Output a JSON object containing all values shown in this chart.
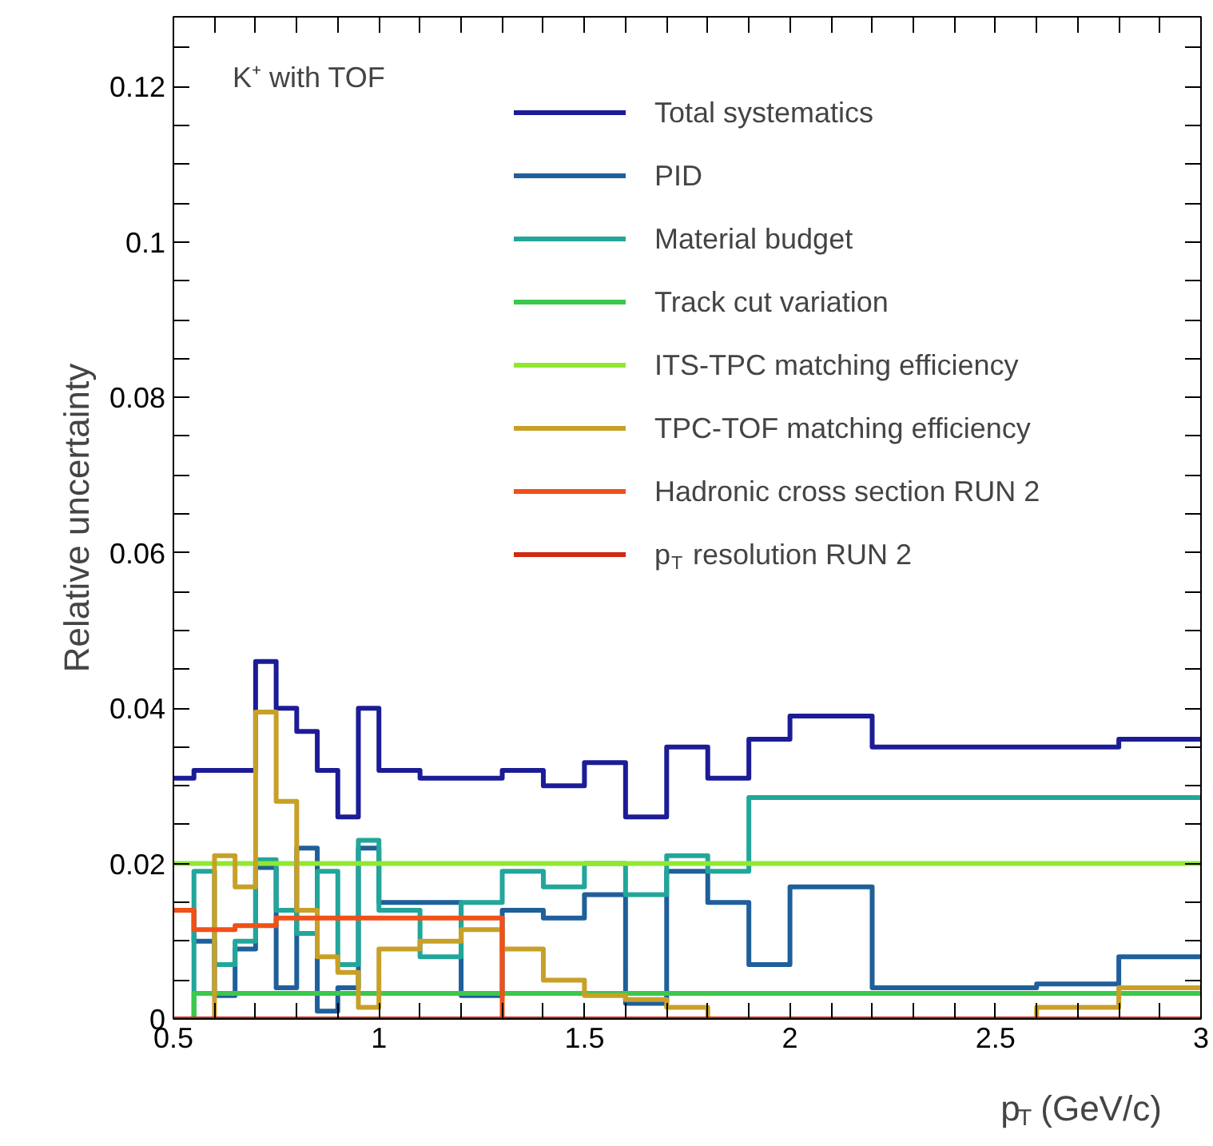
{
  "chart_data": {
    "type": "histogram",
    "xlabel": "p$_{T}$ (GeV/c)",
    "ylabel": "Relative uncertainty",
    "annotations": [
      "K⁺ with TOF"
    ],
    "bins": [
      0.5,
      0.55,
      0.6,
      0.65,
      0.7,
      0.75,
      0.8,
      0.85,
      0.9,
      0.95,
      1.0,
      1.1,
      1.2,
      1.3,
      1.4,
      1.5,
      1.6,
      1.7,
      1.8,
      1.9,
      2.0,
      2.2,
      2.6,
      2.8,
      3.0
    ],
    "series": [
      {
        "name": "Total systematics",
        "color": "#1c1c96",
        "values": [
          0.031,
          0.032,
          0.032,
          0.032,
          0.046,
          0.04,
          0.037,
          0.032,
          0.026,
          0.04,
          0.032,
          0.031,
          0.031,
          0.032,
          0.03,
          0.033,
          0.026,
          0.035,
          0.031,
          0.036,
          0.039,
          0.035,
          0.035,
          0.036
        ]
      },
      {
        "name": "PID",
        "color": "#1f5f9a",
        "values": [
          0.014,
          0.01,
          0.003,
          0.009,
          0.0195,
          0.004,
          0.022,
          0.001,
          0.004,
          0.022,
          0.015,
          0.015,
          0.003,
          0.014,
          0.013,
          0.016,
          0.002,
          0.019,
          0.015,
          0.007,
          0.017,
          0.004,
          0.0045,
          0.008
        ]
      },
      {
        "name": "Material budget",
        "color": "#22a69a",
        "values": [
          0.0,
          0.019,
          0.007,
          0.01,
          0.0205,
          0.014,
          0.011,
          0.019,
          0.007,
          0.023,
          0.014,
          0.008,
          0.015,
          0.019,
          0.017,
          0.02,
          0.016,
          0.021,
          0.019,
          0.0285,
          0.0285,
          0.0285,
          0.0285,
          0.0285
        ]
      },
      {
        "name": "Track cut variation",
        "color": "#3cc84a",
        "values": [
          0.0,
          0.0033,
          0.0033,
          0.0033,
          0.0033,
          0.0033,
          0.0033,
          0.0033,
          0.0033,
          0.0033,
          0.0033,
          0.0033,
          0.0033,
          0.0033,
          0.0033,
          0.0033,
          0.0033,
          0.0033,
          0.0033,
          0.0033,
          0.0033,
          0.0033,
          0.0033,
          0.0033
        ]
      },
      {
        "name": "ITS-TPC matching efficiency",
        "color": "#90e830",
        "values": [
          0.02,
          0.02,
          0.02,
          0.02,
          0.02,
          0.02,
          0.02,
          0.02,
          0.02,
          0.02,
          0.02,
          0.02,
          0.02,
          0.02,
          0.02,
          0.02,
          0.02,
          0.02,
          0.02,
          0.02,
          0.02,
          0.02,
          0.02,
          0.02
        ]
      },
      {
        "name": "TPC-TOF matching efficiency",
        "color": "#c8a028",
        "values": [
          0.0,
          0.0,
          0.021,
          0.017,
          0.0395,
          0.028,
          0.014,
          0.008,
          0.006,
          0.0015,
          0.009,
          0.01,
          0.0115,
          0.009,
          0.005,
          0.003,
          0.0025,
          0.0015,
          0.0,
          0.0,
          0.0,
          0.0,
          0.0015,
          0.004
        ]
      },
      {
        "name": "Hadronic cross section RUN 2",
        "color": "#f0501a",
        "values": [
          0.014,
          0.0115,
          0.0115,
          0.012,
          0.012,
          0.013,
          0.013,
          0.013,
          0.013,
          0.013,
          0.013,
          0.013,
          0.013,
          0.0,
          0.0,
          0.0,
          0.0,
          0.0,
          0.0,
          0.0,
          0.0,
          0.0,
          0.0,
          0.0
        ]
      },
      {
        "name": "p$_{T}$ resolution RUN 2",
        "color": "#d02a10",
        "values": [
          0.0,
          0.0,
          0.0,
          0.0,
          0.0,
          0.0,
          0.0,
          0.0,
          0.0,
          0.0,
          0.0,
          0.0,
          0.0,
          0.0,
          0.0,
          0.0,
          0.0,
          0.0,
          0.0,
          0.0,
          0.0,
          0.0,
          0.0,
          0.0
        ]
      }
    ],
    "xlim": [
      0.5,
      3.0
    ],
    "ylim": [
      0,
      0.129
    ],
    "xticks": [
      {
        "value": 0.5,
        "label": "0.5"
      },
      {
        "value": 0.6,
        "label": null
      },
      {
        "value": 0.7,
        "label": null
      },
      {
        "value": 0.8,
        "label": null
      },
      {
        "value": 0.9,
        "label": null
      },
      1,
      {
        "value": 1.1,
        "label": null
      },
      {
        "value": 1.2,
        "label": null
      },
      {
        "value": 1.3,
        "label": null
      },
      {
        "value": 1.4,
        "label": null
      },
      1.5,
      {
        "value": 1.6,
        "label": null
      },
      {
        "value": 1.7,
        "label": null
      },
      {
        "value": 1.8,
        "label": null
      },
      {
        "value": 1.9,
        "label": null
      },
      2,
      {
        "value": 2.1,
        "label": null
      },
      {
        "value": 2.2,
        "label": null
      },
      {
        "value": 2.3,
        "label": null
      },
      {
        "value": 2.4,
        "label": null
      },
      2.5,
      {
        "value": 2.6,
        "label": null
      },
      {
        "value": 2.7,
        "label": null
      },
      {
        "value": 2.8,
        "label": null
      },
      {
        "value": 2.9,
        "label": null
      },
      3
    ],
    "yticks": [
      0,
      {
        "value": 0.005,
        "label": null
      },
      {
        "value": 0.01,
        "label": null
      },
      {
        "value": 0.015,
        "label": null
      },
      0.02,
      {
        "value": 0.025,
        "label": null
      },
      {
        "value": 0.03,
        "label": null
      },
      {
        "value": 0.035,
        "label": null
      },
      0.04,
      {
        "value": 0.045,
        "label": null
      },
      {
        "value": 0.05,
        "label": null
      },
      {
        "value": 0.055,
        "label": null
      },
      0.06,
      {
        "value": 0.065,
        "label": null
      },
      {
        "value": 0.07,
        "label": null
      },
      {
        "value": 0.075,
        "label": null
      },
      0.08,
      {
        "value": 0.085,
        "label": null
      },
      {
        "value": 0.09,
        "label": null
      },
      {
        "value": 0.095,
        "label": null
      },
      0.1,
      {
        "value": 0.105,
        "label": null
      },
      {
        "value": 0.11,
        "label": null
      },
      {
        "value": 0.115,
        "label": null
      },
      0.12,
      {
        "value": 0.125,
        "label": null
      }
    ],
    "legend": "top right"
  }
}
